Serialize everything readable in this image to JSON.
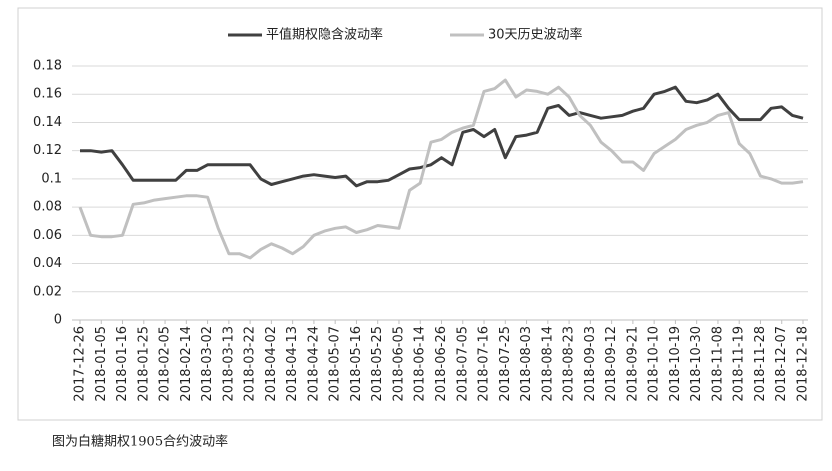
{
  "chart_data": {
    "type": "line",
    "categories": [
      "2017-12-26",
      null,
      "2018-01-05",
      null,
      "2018-01-16",
      null,
      "2018-01-25",
      null,
      "2018-02-05",
      null,
      "2018-02-14",
      null,
      "2018-03-02",
      null,
      "2018-03-13",
      null,
      "2018-03-22",
      null,
      "2018-04-02",
      null,
      "2018-04-13",
      null,
      "2018-04-24",
      null,
      "2018-05-07",
      null,
      "2018-05-16",
      null,
      "2018-05-25",
      null,
      "2018-06-05",
      null,
      "2018-06-14",
      null,
      "2018-06-26",
      null,
      "2018-07-05",
      null,
      "2018-07-16",
      null,
      "2018-07-25",
      null,
      "2018-08-03",
      null,
      "2018-08-14",
      null,
      "2018-08-23",
      null,
      "2018-09-03",
      null,
      "2018-09-12",
      null,
      "2018-09-21",
      null,
      "2018-10-10",
      null,
      "2018-10-19",
      null,
      "2018-10-30",
      null,
      "2018-11-08",
      null,
      "2018-11-19",
      null,
      "2018-11-28",
      null,
      "2018-12-07",
      null,
      "2018-12-18"
    ],
    "series": [
      {
        "name": "平值期权隐含波动率",
        "color": "#404040",
        "values": [
          0.12,
          0.12,
          0.119,
          0.12,
          0.11,
          0.099,
          0.099,
          0.099,
          0.099,
          0.099,
          0.106,
          0.106,
          0.11,
          0.11,
          0.11,
          0.11,
          0.11,
          0.1,
          0.096,
          0.098,
          0.1,
          0.102,
          0.103,
          0.102,
          0.101,
          0.102,
          0.095,
          0.098,
          0.098,
          0.099,
          0.103,
          0.107,
          0.108,
          0.11,
          0.115,
          0.11,
          0.133,
          0.135,
          0.13,
          0.135,
          0.115,
          0.13,
          0.131,
          0.133,
          0.15,
          0.152,
          0.145,
          0.147,
          0.145,
          0.143,
          0.144,
          0.145,
          0.148,
          0.15,
          0.16,
          0.162,
          0.165,
          0.155,
          0.154,
          0.156,
          0.16,
          0.15,
          0.142,
          0.142,
          0.142,
          0.15,
          0.151,
          0.145,
          0.143
        ]
      },
      {
        "name": "30天历史波动率",
        "color": "#c0c0c0",
        "values": [
          0.08,
          0.06,
          0.059,
          0.059,
          0.06,
          0.082,
          0.083,
          0.085,
          0.086,
          0.087,
          0.088,
          0.088,
          0.087,
          0.065,
          0.047,
          0.047,
          0.044,
          0.05,
          0.054,
          0.051,
          0.047,
          0.052,
          0.06,
          0.063,
          0.065,
          0.066,
          0.062,
          0.064,
          0.067,
          0.066,
          0.065,
          0.092,
          0.097,
          0.126,
          0.128,
          0.133,
          0.136,
          0.138,
          0.162,
          0.164,
          0.17,
          0.158,
          0.163,
          0.162,
          0.16,
          0.165,
          0.158,
          0.145,
          0.138,
          0.126,
          0.12,
          0.112,
          0.112,
          0.106,
          0.118,
          0.123,
          0.128,
          0.135,
          0.138,
          0.14,
          0.145,
          0.147,
          0.125,
          0.118,
          0.102,
          0.1,
          0.097,
          0.097,
          0.098
        ]
      }
    ],
    "ylim": [
      0,
      0.18
    ],
    "yticks": [
      0,
      0.02,
      0.04,
      0.06,
      0.08,
      0.1,
      0.12,
      0.14,
      0.16,
      0.18
    ],
    "grid": true,
    "legend": "top",
    "caption": "图为白糖期权1905合约波动率"
  }
}
